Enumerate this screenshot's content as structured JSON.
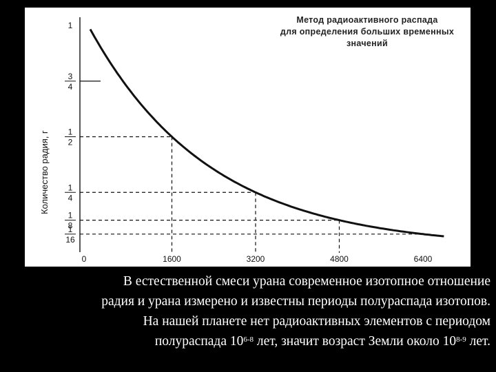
{
  "chart_data": {
    "type": "line",
    "title_lines": [
      "Метод радиоактивного распада",
      "для определения больших временных",
      "значений"
    ],
    "ylabel": "Количество радия, г",
    "xlabel": "",
    "x_ticks": [
      "0",
      "1600",
      "3200",
      "4800",
      "6400"
    ],
    "y_ticks": [
      {
        "value": 1,
        "label": "1"
      },
      {
        "value": 0.75,
        "num": "3",
        "den": "4"
      },
      {
        "value": 0.5,
        "num": "1",
        "den": "2"
      },
      {
        "value": 0.25,
        "num": "1",
        "den": "4"
      },
      {
        "value": 0.125,
        "num": "1",
        "den": "8"
      },
      {
        "value": 0.0625,
        "num": "1",
        "den": "16"
      }
    ],
    "xlim": [
      0,
      7000
    ],
    "ylim": [
      0,
      1
    ],
    "half_life": 1600,
    "series": [
      {
        "x_start": 0,
        "x_end": 7000,
        "function": "exponential decay"
      }
    ],
    "guides": [
      {
        "x": 1600,
        "y": 0.5
      },
      {
        "x": 3200,
        "y": 0.25
      },
      {
        "x": 4800,
        "y": 0.125
      },
      {
        "x": 6400,
        "y": 0.0625
      }
    ]
  },
  "caption": {
    "line1": "В естественной смеси урана современное изотопное отношение",
    "line2": "радия и урана измерено и известны периоды полураспада изотопов.",
    "line3": "На нашей планете нет радиоактивных элементов с периодом",
    "line4_a": "полураспада 10",
    "line4_sup1": "6-8",
    "line4_b": " лет, значит возраст Земли около 10",
    "line4_sup2": "8-9",
    "line4_c": " лет."
  },
  "colors": {
    "background": "#000000",
    "panel": "#ffffff",
    "ink": "#111111",
    "caption": "#ffffff"
  }
}
